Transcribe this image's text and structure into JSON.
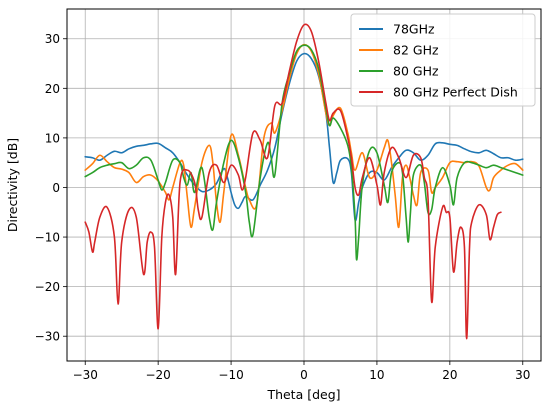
{
  "chart_data": {
    "type": "line",
    "title": "",
    "xlabel": "Theta [deg]",
    "ylabel": "Directivity [dB]",
    "xlim": [
      -32.5,
      32.5
    ],
    "ylim": [
      -35,
      36
    ],
    "xticks": [
      -30,
      -20,
      -10,
      0,
      10,
      20,
      30
    ],
    "yticks": [
      -30,
      -20,
      -10,
      0,
      10,
      20,
      30
    ],
    "xtick_labels": [
      "−30",
      "−20",
      "−10",
      "0",
      "10",
      "20",
      "30"
    ],
    "ytick_labels": [
      "−30",
      "−20",
      "−10",
      "0",
      "10",
      "20",
      "30"
    ],
    "grid": true,
    "legend_position": "top-right",
    "series": [
      {
        "name": "78GHz",
        "color": "#1f77b4",
        "points": [
          [
            -30,
            6.2
          ],
          [
            -29,
            6.0
          ],
          [
            -28,
            5.5
          ],
          [
            -27,
            6.5
          ],
          [
            -26,
            7.3
          ],
          [
            -25,
            7.0
          ],
          [
            -24,
            7.8
          ],
          [
            -23,
            8.3
          ],
          [
            -22,
            8.5
          ],
          [
            -21,
            8.8
          ],
          [
            -20,
            8.9
          ],
          [
            -19,
            8.0
          ],
          [
            -18,
            7.0
          ],
          [
            -17,
            5.0
          ],
          [
            -16,
            2.5
          ],
          [
            -15,
            0.5
          ],
          [
            -14,
            -0.8
          ],
          [
            -13,
            -0.5
          ],
          [
            -12,
            0.8
          ],
          [
            -11,
            3.8
          ],
          [
            -10.5,
            2.0
          ],
          [
            -10,
            -1.0
          ],
          [
            -9.5,
            -3.5
          ],
          [
            -9,
            -4.2
          ],
          [
            -8.5,
            -3.0
          ],
          [
            -8,
            -1.8
          ],
          [
            -7,
            -2.5
          ],
          [
            -6,
            0.5
          ],
          [
            -5,
            3.5
          ],
          [
            -4,
            8.0
          ],
          [
            -3,
            15.0
          ],
          [
            -2,
            21.0
          ],
          [
            -1,
            25.5
          ],
          [
            0,
            27.0
          ],
          [
            1,
            26.0
          ],
          [
            2,
            22.5
          ],
          [
            3,
            15.0
          ],
          [
            3.5,
            8.0
          ],
          [
            4,
            1.0
          ],
          [
            4.5,
            3.0
          ],
          [
            5,
            5.5
          ],
          [
            6,
            5.8
          ],
          [
            6.5,
            3.0
          ],
          [
            7,
            -6.5
          ],
          [
            7.5,
            -3.0
          ],
          [
            8,
            0.0
          ],
          [
            9,
            3.0
          ],
          [
            10,
            3.0
          ],
          [
            11,
            1.5
          ],
          [
            12,
            4.0
          ],
          [
            13,
            6.0
          ],
          [
            14,
            7.5
          ],
          [
            15,
            7.0
          ],
          [
            16,
            5.5
          ],
          [
            17,
            6.5
          ],
          [
            18,
            8.8
          ],
          [
            19,
            9.0
          ],
          [
            20,
            8.7
          ],
          [
            21,
            8.5
          ],
          [
            22,
            7.8
          ],
          [
            23,
            7.2
          ],
          [
            24,
            7.0
          ],
          [
            25,
            7.5
          ],
          [
            26,
            6.8
          ],
          [
            27,
            6.0
          ],
          [
            28,
            6.0
          ],
          [
            29,
            5.5
          ],
          [
            30,
            5.7
          ]
        ]
      },
      {
        "name": "82 GHz",
        "color": "#ff7f0e",
        "points": [
          [
            -30,
            3.5
          ],
          [
            -29,
            4.8
          ],
          [
            -28,
            6.5
          ],
          [
            -27,
            5.2
          ],
          [
            -26,
            4.0
          ],
          [
            -25,
            3.7
          ],
          [
            -24,
            3.0
          ],
          [
            -23,
            1.0
          ],
          [
            -22,
            2.2
          ],
          [
            -21,
            2.5
          ],
          [
            -20,
            1.3
          ],
          [
            -19,
            -1.0
          ],
          [
            -18.5,
            -2.5
          ],
          [
            -18,
            0.0
          ],
          [
            -17,
            5.0
          ],
          [
            -16.5,
            4.5
          ],
          [
            -16,
            -2.0
          ],
          [
            -15.5,
            -8.0
          ],
          [
            -15,
            -4.0
          ],
          [
            -14,
            5.0
          ],
          [
            -13,
            8.5
          ],
          [
            -12.5,
            5.0
          ],
          [
            -12,
            -3.0
          ],
          [
            -11.5,
            -7.0
          ],
          [
            -11,
            -1.0
          ],
          [
            -10,
            10.5
          ],
          [
            -9,
            6.5
          ],
          [
            -8,
            0.0
          ],
          [
            -7.5,
            -2.5
          ],
          [
            -6.5,
            -3.5
          ],
          [
            -5.5,
            10.0
          ],
          [
            -4.5,
            13.0
          ],
          [
            -4,
            11.0
          ],
          [
            -3,
            15.5
          ],
          [
            -2,
            22.0
          ],
          [
            -1,
            27.0
          ],
          [
            0,
            28.8
          ],
          [
            1,
            27.5
          ],
          [
            2,
            23.0
          ],
          [
            3,
            15.0
          ],
          [
            3.5,
            12.5
          ],
          [
            4,
            14.5
          ],
          [
            5,
            16.0
          ],
          [
            6,
            11.0
          ],
          [
            6.5,
            7.0
          ],
          [
            7,
            3.5
          ],
          [
            8,
            7.0
          ],
          [
            9,
            2.0
          ],
          [
            10,
            3.5
          ],
          [
            11,
            8.0
          ],
          [
            11.5,
            9.5
          ],
          [
            12,
            5.0
          ],
          [
            12.5,
            -1.5
          ],
          [
            13,
            -8.0
          ],
          [
            13.5,
            2.0
          ],
          [
            14,
            4.5
          ],
          [
            14.5,
            2.0
          ],
          [
            15,
            -1.5
          ],
          [
            15.5,
            -3.5
          ],
          [
            16,
            3.0
          ],
          [
            17,
            3.5
          ],
          [
            17.5,
            -1.0
          ],
          [
            18,
            0.0
          ],
          [
            19,
            2.0
          ],
          [
            20,
            5.0
          ],
          [
            21,
            5.2
          ],
          [
            22,
            5.0
          ],
          [
            23,
            5.2
          ],
          [
            24,
            4.3
          ],
          [
            25,
            0.0
          ],
          [
            25.5,
            -0.5
          ],
          [
            26,
            2.0
          ],
          [
            27,
            3.5
          ],
          [
            28,
            4.5
          ],
          [
            29,
            4.8
          ],
          [
            30,
            3.5
          ]
        ]
      },
      {
        "name": "80 GHz",
        "color": "#2ca02c",
        "points": [
          [
            -30,
            2.2
          ],
          [
            -29,
            3.0
          ],
          [
            -28,
            4.0
          ],
          [
            -27,
            4.5
          ],
          [
            -26,
            4.8
          ],
          [
            -25,
            5.0
          ],
          [
            -24,
            3.8
          ],
          [
            -23,
            4.5
          ],
          [
            -22,
            6.0
          ],
          [
            -21,
            5.5
          ],
          [
            -20,
            1.5
          ],
          [
            -19.5,
            -0.5
          ],
          [
            -19,
            1.0
          ],
          [
            -18,
            5.5
          ],
          [
            -17,
            5.0
          ],
          [
            -16.5,
            2.0
          ],
          [
            -16,
            0.5
          ],
          [
            -15.5,
            3.0
          ],
          [
            -15,
            -1.0
          ],
          [
            -14,
            4.0
          ],
          [
            -13,
            -6.0
          ],
          [
            -12.5,
            -8.5
          ],
          [
            -12,
            -3.0
          ],
          [
            -11,
            5.0
          ],
          [
            -10,
            9.5
          ],
          [
            -9,
            6.0
          ],
          [
            -8,
            -1.0
          ],
          [
            -7.5,
            -7.0
          ],
          [
            -7,
            -9.5
          ],
          [
            -6,
            2.0
          ],
          [
            -5,
            9.0
          ],
          [
            -4.5,
            6.0
          ],
          [
            -4,
            2.5
          ],
          [
            -3,
            17.0
          ],
          [
            -2,
            23.0
          ],
          [
            -1,
            27.5
          ],
          [
            0,
            28.7
          ],
          [
            1,
            27.8
          ],
          [
            2,
            24.0
          ],
          [
            3,
            16.0
          ],
          [
            3.5,
            12.5
          ],
          [
            4,
            14.0
          ],
          [
            5,
            12.0
          ],
          [
            6,
            8.5
          ],
          [
            6.5,
            4.0
          ],
          [
            7,
            -6.0
          ],
          [
            7.2,
            -14.5
          ],
          [
            7.5,
            -10.0
          ],
          [
            8,
            0.5
          ],
          [
            9,
            7.5
          ],
          [
            10,
            7.0
          ],
          [
            11,
            0.5
          ],
          [
            11.5,
            -3.0
          ],
          [
            12,
            3.0
          ],
          [
            13,
            5.0
          ],
          [
            13.5,
            3.0
          ],
          [
            14,
            -6.0
          ],
          [
            14.3,
            -11.0
          ],
          [
            14.6,
            -5.0
          ],
          [
            15,
            2.5
          ],
          [
            16,
            4.5
          ],
          [
            16.5,
            1.0
          ],
          [
            17,
            -5.0
          ],
          [
            17.5,
            -4.5
          ],
          [
            18,
            0.0
          ],
          [
            19,
            4.0
          ],
          [
            20,
            0.5
          ],
          [
            20.5,
            -3.5
          ],
          [
            21,
            2.0
          ],
          [
            22,
            5.0
          ],
          [
            23,
            5.0
          ],
          [
            24,
            4.5
          ],
          [
            25,
            4.0
          ],
          [
            26,
            4.5
          ],
          [
            27,
            4.0
          ],
          [
            28,
            3.5
          ],
          [
            29,
            3.0
          ],
          [
            30,
            2.5
          ]
        ]
      },
      {
        "name": "80 GHz Perfect Dish",
        "color": "#d62728",
        "points": [
          [
            -30,
            -7.0
          ],
          [
            -29.5,
            -9.0
          ],
          [
            -29,
            -13.0
          ],
          [
            -28.7,
            -11.0
          ],
          [
            -28,
            -6.0
          ],
          [
            -27,
            -4.0
          ],
          [
            -26,
            -10.0
          ],
          [
            -25.5,
            -23.5
          ],
          [
            -25,
            -11.0
          ],
          [
            -24,
            -4.5
          ],
          [
            -23,
            -6.0
          ],
          [
            -22,
            -17.5
          ],
          [
            -21.5,
            -11.0
          ],
          [
            -21,
            -9.0
          ],
          [
            -20.5,
            -12.0
          ],
          [
            -20,
            -28.5
          ],
          [
            -19.5,
            -10.0
          ],
          [
            -19,
            -3.0
          ],
          [
            -18.5,
            -1.5
          ],
          [
            -18,
            -6.0
          ],
          [
            -17.6,
            -17.5
          ],
          [
            -17,
            1.0
          ],
          [
            -16,
            3.5
          ],
          [
            -15,
            1.0
          ],
          [
            -14.5,
            -4.5
          ],
          [
            -14,
            -6.0
          ],
          [
            -13,
            3.0
          ],
          [
            -12,
            4.5
          ],
          [
            -11,
            1.0
          ],
          [
            -10,
            4.5
          ],
          [
            -9,
            2.5
          ],
          [
            -8.5,
            -0.5
          ],
          [
            -8,
            2.0
          ],
          [
            -7,
            11.0
          ],
          [
            -6,
            9.5
          ],
          [
            -5,
            6.0
          ],
          [
            -4,
            16.5
          ],
          [
            -3,
            17.0
          ],
          [
            -2,
            23.5
          ],
          [
            -1,
            29.5
          ],
          [
            0,
            32.8
          ],
          [
            1,
            31.5
          ],
          [
            2,
            25.5
          ],
          [
            3,
            17.0
          ],
          [
            3.5,
            13.5
          ],
          [
            4,
            15.0
          ],
          [
            5,
            15.5
          ],
          [
            6,
            10.0
          ],
          [
            6.5,
            6.0
          ],
          [
            7,
            0.0
          ],
          [
            7.5,
            -1.5
          ],
          [
            8,
            2.0
          ],
          [
            9,
            6.0
          ],
          [
            10,
            0.5
          ],
          [
            10.5,
            -3.5
          ],
          [
            11,
            3.0
          ],
          [
            12,
            8.0
          ],
          [
            13,
            6.0
          ],
          [
            14,
            2.0
          ],
          [
            15,
            6.5
          ],
          [
            16,
            6.0
          ],
          [
            16.5,
            2.0
          ],
          [
            17,
            -2.0
          ],
          [
            17.5,
            -23.0
          ],
          [
            18,
            -12.0
          ],
          [
            19,
            -4.0
          ],
          [
            19.5,
            -5.0
          ],
          [
            20,
            -6.0
          ],
          [
            20.5,
            -17.0
          ],
          [
            21,
            -11.0
          ],
          [
            21.5,
            -8.0
          ],
          [
            22,
            -12.0
          ],
          [
            22.3,
            -30.5
          ],
          [
            22.7,
            -12.0
          ],
          [
            23,
            -7.0
          ],
          [
            24,
            -3.5
          ],
          [
            25,
            -5.5
          ],
          [
            25.5,
            -10.5
          ],
          [
            26,
            -8.0
          ],
          [
            26.5,
            -5.5
          ],
          [
            27,
            -5.0
          ]
        ]
      }
    ]
  }
}
